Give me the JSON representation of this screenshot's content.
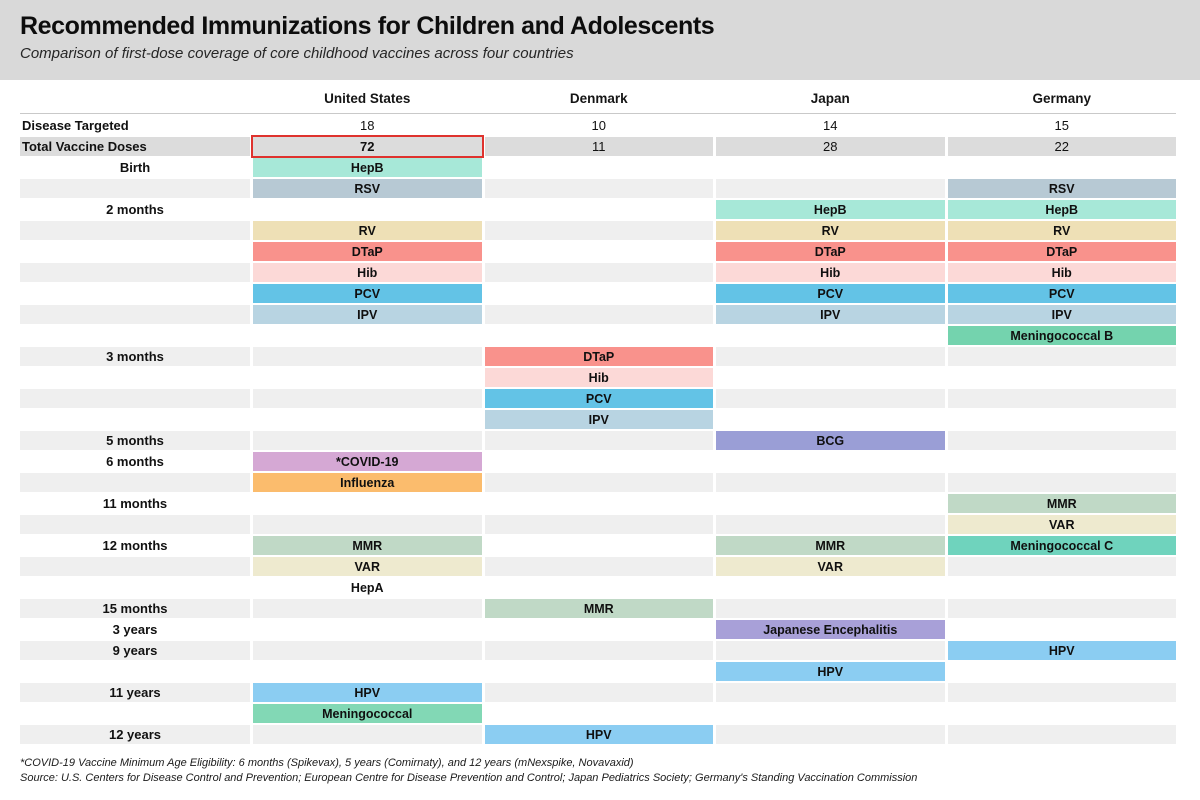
{
  "header": {
    "title": "Recommended Immunizations for Children and Adolescents",
    "subtitle": "Comparison of first-dose coverage of core childhood vaccines across four countries"
  },
  "columns": [
    "United States",
    "Denmark",
    "Japan",
    "Germany"
  ],
  "metrics": [
    {
      "label": "Disease Targeted",
      "values": [
        "18",
        "10",
        "14",
        "15"
      ],
      "shaded": false,
      "highlight_index": -1
    },
    {
      "label": "Total Vaccine Doses",
      "values": [
        "72",
        "11",
        "28",
        "22"
      ],
      "shaded": true,
      "highlight_index": 0
    }
  ],
  "highlight_color": "#df332e",
  "vaccine_colors": {
    "HepB": "#a7e8d8",
    "RSV": "#b7c9d4",
    "RV": "#eee0b6",
    "DTaP": "#f9928c",
    "Hib": "#fcd9d7",
    "PCV": "#63c3e6",
    "IPV": "#b8d4e2",
    "Meningococcal B": "#74d3ae",
    "BCG": "#9a9ed6",
    "*COVID-19": "#d5a8d4",
    "Influenza": "#fbbc6d",
    "MMR": "#c0d9c6",
    "VAR": "#eeeacf",
    "Meningococcal C": "#6fd3bd",
    "HepA": "transparent",
    "Japanese Encephalitis": "#a8a0d8",
    "HPV": "#8bcdf2",
    "Meningococcal": "#82d8b5"
  },
  "schedule_rows": [
    {
      "age": "Birth",
      "stripe": false,
      "cells": [
        "HepB",
        null,
        null,
        null
      ]
    },
    {
      "age": "",
      "stripe": true,
      "cells": [
        "RSV",
        null,
        null,
        "RSV"
      ]
    },
    {
      "age": "2 months",
      "stripe": false,
      "cells": [
        null,
        null,
        "HepB",
        "HepB"
      ]
    },
    {
      "age": "",
      "stripe": true,
      "cells": [
        "RV",
        null,
        "RV",
        "RV"
      ]
    },
    {
      "age": "",
      "stripe": false,
      "cells": [
        "DTaP",
        null,
        "DTaP",
        "DTaP"
      ]
    },
    {
      "age": "",
      "stripe": true,
      "cells": [
        "Hib",
        null,
        "Hib",
        "Hib"
      ]
    },
    {
      "age": "",
      "stripe": false,
      "cells": [
        "PCV",
        null,
        "PCV",
        "PCV"
      ]
    },
    {
      "age": "",
      "stripe": true,
      "cells": [
        "IPV",
        null,
        "IPV",
        "IPV"
      ]
    },
    {
      "age": "",
      "stripe": false,
      "cells": [
        null,
        null,
        null,
        "Meningococcal B"
      ]
    },
    {
      "age": "3 months",
      "stripe": true,
      "cells": [
        null,
        "DTaP",
        null,
        null
      ]
    },
    {
      "age": "",
      "stripe": false,
      "cells": [
        null,
        "Hib",
        null,
        null
      ]
    },
    {
      "age": "",
      "stripe": true,
      "cells": [
        null,
        "PCV",
        null,
        null
      ]
    },
    {
      "age": "",
      "stripe": false,
      "cells": [
        null,
        "IPV",
        null,
        null
      ]
    },
    {
      "age": "5 months",
      "stripe": true,
      "cells": [
        null,
        null,
        "BCG",
        null
      ]
    },
    {
      "age": "6 months",
      "stripe": false,
      "cells": [
        "*COVID-19",
        null,
        null,
        null
      ]
    },
    {
      "age": "",
      "stripe": true,
      "cells": [
        "Influenza",
        null,
        null,
        null
      ]
    },
    {
      "age": "11 months",
      "stripe": false,
      "cells": [
        null,
        null,
        null,
        "MMR"
      ]
    },
    {
      "age": "",
      "stripe": true,
      "cells": [
        null,
        null,
        null,
        "VAR"
      ]
    },
    {
      "age": "12 months",
      "stripe": false,
      "cells": [
        "MMR",
        null,
        "MMR",
        "Meningococcal C"
      ]
    },
    {
      "age": "",
      "stripe": true,
      "cells": [
        "VAR",
        null,
        "VAR",
        null
      ]
    },
    {
      "age": "",
      "stripe": false,
      "cells": [
        "HepA",
        null,
        null,
        null
      ]
    },
    {
      "age": "15 months",
      "stripe": true,
      "cells": [
        null,
        "MMR",
        null,
        null
      ]
    },
    {
      "age": "3 years",
      "stripe": false,
      "cells": [
        null,
        null,
        "Japanese Encephalitis",
        null
      ]
    },
    {
      "age": "9 years",
      "stripe": true,
      "cells": [
        null,
        null,
        null,
        "HPV"
      ]
    },
    {
      "age": "",
      "stripe": false,
      "cells": [
        null,
        null,
        "HPV",
        null
      ]
    },
    {
      "age": "11 years",
      "stripe": true,
      "cells": [
        "HPV",
        null,
        null,
        null
      ]
    },
    {
      "age": "",
      "stripe": false,
      "cells": [
        "Meningococcal",
        null,
        null,
        null
      ]
    },
    {
      "age": "12 years",
      "stripe": true,
      "cells": [
        null,
        "HPV",
        null,
        null
      ]
    }
  ],
  "footnotes": [
    "*COVID-19 Vaccine Minimum Age Eligibility: 6 months (Spikevax), 5 years (Comirnaty), and 12 years (mNexspike, Novavaxid)",
    "Source: U.S. Centers for Disease Control and Prevention; European Centre for Disease Prevention and Control; Japan Pediatrics Society; Germany's Standing Vaccination Commission"
  ],
  "chart_data": {
    "type": "table",
    "title": "Recommended Immunizations for Children and Adolescents",
    "subtitle": "Comparison of first-dose coverage of core childhood vaccines across four countries",
    "columns": [
      "United States",
      "Denmark",
      "Japan",
      "Germany"
    ],
    "diseases_targeted": [
      18,
      10,
      14,
      15
    ],
    "total_vaccine_doses": [
      72,
      11,
      28,
      22
    ],
    "highlighted_value": {
      "metric": "Total Vaccine Doses",
      "country": "United States",
      "value": 72
    },
    "schedule": [
      {
        "age": "Birth",
        "United States": [
          "HepB",
          "RSV"
        ],
        "Denmark": [],
        "Japan": [],
        "Germany": [
          "RSV"
        ]
      },
      {
        "age": "2 months",
        "United States": [
          "RV",
          "DTaP",
          "Hib",
          "PCV",
          "IPV"
        ],
        "Denmark": [],
        "Japan": [
          "HepB",
          "RV",
          "DTaP",
          "Hib",
          "PCV",
          "IPV"
        ],
        "Germany": [
          "HepB",
          "RV",
          "DTaP",
          "Hib",
          "PCV",
          "IPV",
          "Meningococcal B"
        ]
      },
      {
        "age": "3 months",
        "United States": [],
        "Denmark": [
          "DTaP",
          "Hib",
          "PCV",
          "IPV"
        ],
        "Japan": [],
        "Germany": []
      },
      {
        "age": "5 months",
        "United States": [],
        "Denmark": [],
        "Japan": [
          "BCG"
        ],
        "Germany": []
      },
      {
        "age": "6 months",
        "United States": [
          "*COVID-19",
          "Influenza"
        ],
        "Denmark": [],
        "Japan": [],
        "Germany": []
      },
      {
        "age": "11 months",
        "United States": [],
        "Denmark": [],
        "Japan": [],
        "Germany": [
          "MMR",
          "VAR"
        ]
      },
      {
        "age": "12 months",
        "United States": [
          "MMR",
          "VAR",
          "HepA"
        ],
        "Denmark": [],
        "Japan": [
          "MMR",
          "VAR"
        ],
        "Germany": [
          "Meningococcal C"
        ]
      },
      {
        "age": "15 months",
        "United States": [],
        "Denmark": [
          "MMR"
        ],
        "Japan": [],
        "Germany": []
      },
      {
        "age": "3 years",
        "United States": [],
        "Denmark": [],
        "Japan": [
          "Japanese Encephalitis"
        ],
        "Germany": []
      },
      {
        "age": "9 years",
        "United States": [],
        "Denmark": [],
        "Japan": [
          "HPV"
        ],
        "Germany": [
          "HPV"
        ]
      },
      {
        "age": "11 years",
        "United States": [
          "HPV",
          "Meningococcal"
        ],
        "Denmark": [],
        "Japan": [],
        "Germany": []
      },
      {
        "age": "12 years",
        "United States": [],
        "Denmark": [
          "HPV"
        ],
        "Japan": [],
        "Germany": []
      }
    ]
  }
}
